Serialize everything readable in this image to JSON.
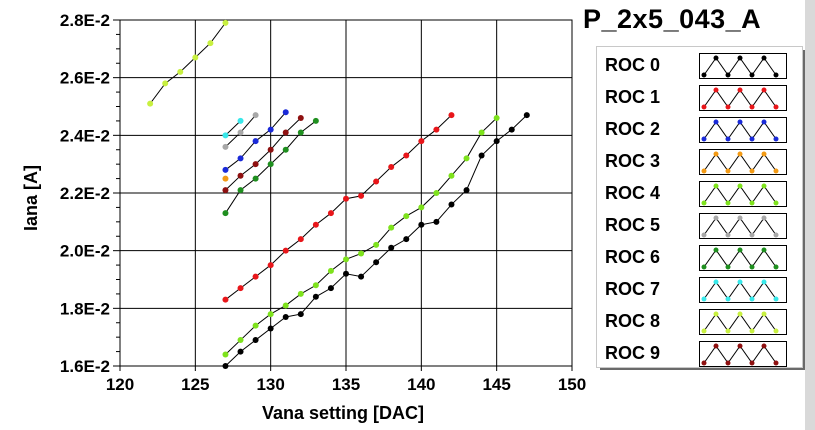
{
  "chart_data": {
    "type": "line",
    "title": "P_2x5_043_A",
    "xlabel": "Vana setting [DAC]",
    "ylabel": "Iana [A]",
    "xlim": [
      120,
      150
    ],
    "ylim": [
      0.016,
      0.028
    ],
    "x_ticks": [
      "120",
      "125",
      "130",
      "135",
      "140",
      "145",
      "150"
    ],
    "y_ticks": [
      "1.6E-2",
      "1.8E-2",
      "2.0E-2",
      "2.2E-2",
      "2.4E-2",
      "2.6E-2",
      "2.8E-2"
    ],
    "grid": true,
    "legend_position": "right",
    "series": [
      {
        "name": "ROC 0",
        "color": "#000000",
        "x": [
          127,
          128,
          129,
          130,
          131,
          132,
          133,
          134,
          135,
          136,
          137,
          138,
          139,
          140,
          141,
          142,
          143,
          144,
          145,
          146,
          147
        ],
        "y": [
          0.016,
          0.0165,
          0.0169,
          0.0173,
          0.0177,
          0.0178,
          0.0184,
          0.0187,
          0.0192,
          0.0191,
          0.0196,
          0.0201,
          0.0204,
          0.0209,
          0.021,
          0.0216,
          0.0221,
          0.0233,
          0.0238,
          0.0242,
          0.0247
        ]
      },
      {
        "name": "ROC 1",
        "color": "#e8161a",
        "x": [
          127,
          128,
          129,
          130,
          131,
          132,
          133,
          134,
          135,
          136,
          137,
          138,
          139,
          140,
          141,
          142
        ],
        "y": [
          0.0183,
          0.0187,
          0.0191,
          0.0195,
          0.02,
          0.0204,
          0.0209,
          0.0213,
          0.0218,
          0.0219,
          0.0224,
          0.0229,
          0.0233,
          0.0238,
          0.0242,
          0.0247
        ]
      },
      {
        "name": "ROC 2",
        "color": "#1a2ad8",
        "x": [
          127,
          128,
          129,
          130,
          131
        ],
        "y": [
          0.0228,
          0.0232,
          0.0238,
          0.0242,
          0.0248
        ]
      },
      {
        "name": "ROC 3",
        "color": "#f39a14",
        "x": [
          127
        ],
        "y": [
          0.0225
        ]
      },
      {
        "name": "ROC 4",
        "color": "#7ee21c",
        "x": [
          127,
          128,
          129,
          130,
          131,
          132,
          133,
          134,
          135,
          136,
          137,
          138,
          139,
          140,
          141,
          142,
          143,
          144,
          145
        ],
        "y": [
          0.0164,
          0.0169,
          0.0174,
          0.0178,
          0.0181,
          0.0185,
          0.0188,
          0.0193,
          0.0197,
          0.0199,
          0.0202,
          0.0208,
          0.0212,
          0.0215,
          0.022,
          0.0226,
          0.0232,
          0.0241,
          0.0246
        ]
      },
      {
        "name": "ROC 5",
        "color": "#a8a8a8",
        "x": [
          127,
          128,
          129
        ],
        "y": [
          0.0236,
          0.0241,
          0.0247
        ]
      },
      {
        "name": "ROC 6",
        "color": "#1f8f1f",
        "x": [
          127,
          128,
          129,
          130,
          131,
          132,
          133
        ],
        "y": [
          0.0213,
          0.0221,
          0.0225,
          0.023,
          0.0235,
          0.0241,
          0.0245
        ]
      },
      {
        "name": "ROC 7",
        "color": "#38e8ea",
        "x": [
          127,
          128
        ],
        "y": [
          0.024,
          0.0245
        ]
      },
      {
        "name": "ROC 8",
        "color": "#c8f040",
        "x": [
          122,
          123,
          124,
          125,
          126,
          127
        ],
        "y": [
          0.0251,
          0.0258,
          0.0262,
          0.0267,
          0.0272,
          0.0279
        ]
      },
      {
        "name": "ROC 9",
        "color": "#8e1010",
        "x": [
          127,
          128,
          129,
          130,
          131,
          132
        ],
        "y": [
          0.0221,
          0.0226,
          0.023,
          0.0235,
          0.0241,
          0.0246
        ]
      }
    ]
  }
}
